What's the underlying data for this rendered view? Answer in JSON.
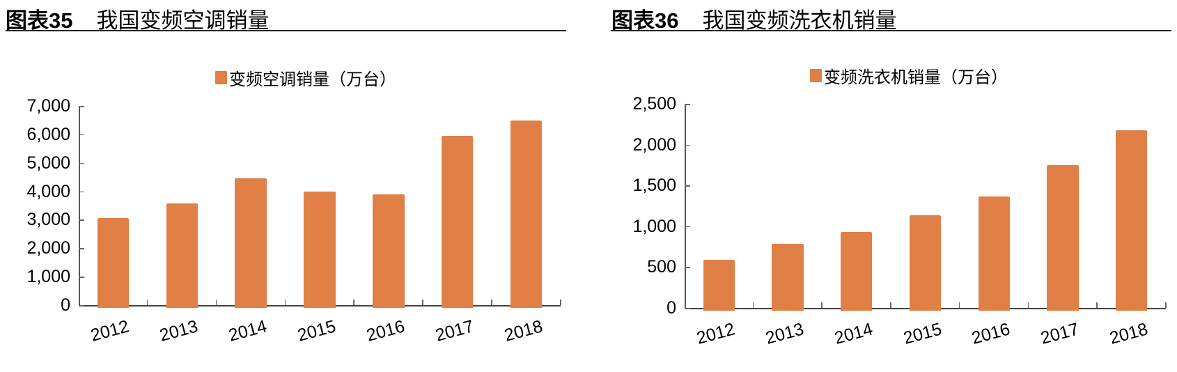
{
  "colors": {
    "bar": "#E08047",
    "axis": "#555555",
    "rule": "#222222"
  },
  "chart_data": [
    {
      "type": "bar",
      "title": "我国变频空调销量",
      "figure_label": "图表35",
      "legend": [
        "变频空调销量（万台）"
      ],
      "categories": [
        "2012",
        "2013",
        "2014",
        "2015",
        "2016",
        "2017",
        "2018"
      ],
      "series": [
        {
          "name": "变频空调销量（万台）",
          "values": [
            3080,
            3600,
            4470,
            4010,
            3910,
            5970,
            6500
          ]
        }
      ],
      "xlabel": "",
      "ylabel": "",
      "ylim": [
        0,
        7000
      ],
      "yticks": [
        "0",
        "1,000",
        "2,000",
        "3,000",
        "4,000",
        "5,000",
        "6,000",
        "7,000"
      ],
      "grid": false,
      "legend_position": "top"
    },
    {
      "type": "bar",
      "title": "我国变频洗衣机销量",
      "figure_label": "图表36",
      "legend": [
        "变频洗衣机销量（万台）"
      ],
      "categories": [
        "2012",
        "2013",
        "2014",
        "2015",
        "2016",
        "2017",
        "2018"
      ],
      "series": [
        {
          "name": "变频洗衣机销量（万台）",
          "values": [
            600,
            795,
            940,
            1140,
            1370,
            1760,
            2185
          ]
        }
      ],
      "xlabel": "",
      "ylabel": "",
      "ylim": [
        0,
        2500
      ],
      "yticks": [
        "0",
        "500",
        "1,000",
        "1,500",
        "2,000",
        "2,500"
      ],
      "grid": false,
      "legend_position": "top"
    }
  ]
}
